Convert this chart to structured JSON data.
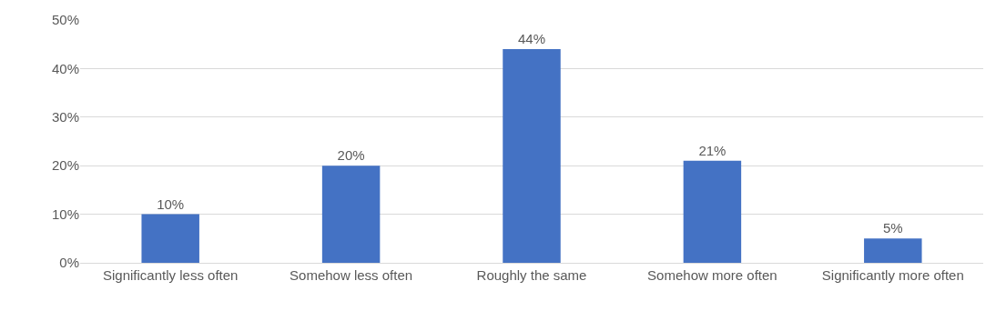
{
  "chart_data": {
    "type": "bar",
    "categories": [
      "Significantly less often",
      "Somehow less often",
      "Roughly the same",
      "Somehow more often",
      "Significantly more often"
    ],
    "values": [
      10,
      20,
      44,
      21,
      5
    ],
    "value_labels": [
      "10%",
      "20%",
      "44%",
      "21%",
      "5%"
    ],
    "color": "#4472c4",
    "ylim": [
      0,
      50
    ],
    "yticks": [
      {
        "value": 0,
        "label": "0%"
      },
      {
        "value": 10,
        "label": "10%"
      },
      {
        "value": 20,
        "label": "20%"
      },
      {
        "value": 30,
        "label": "30%"
      },
      {
        "value": 40,
        "label": "40%"
      },
      {
        "value": 50,
        "label": "50%"
      }
    ],
    "grid": "y"
  }
}
